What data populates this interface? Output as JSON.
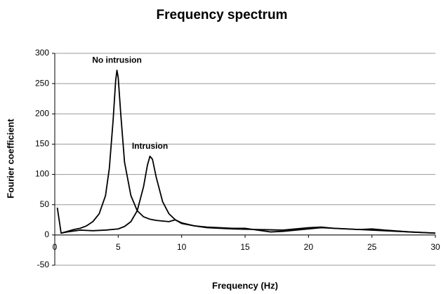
{
  "chart_data": {
    "type": "line",
    "title": "Frequency spectrum",
    "x_label": "Frequency (Hz)",
    "y_label": "Fourier coefficient",
    "xlim": [
      0,
      30
    ],
    "xticks": [
      0,
      5,
      10,
      15,
      20,
      25,
      30
    ],
    "ylim": [
      -50,
      300
    ],
    "yticks": [
      -50,
      0,
      50,
      100,
      150,
      200,
      250,
      300
    ],
    "grid": true,
    "series": [
      {
        "name": "No intrusion",
        "color": "#000000",
        "x": [
          0.2,
          0.5,
          1,
          1.5,
          2,
          2.5,
          3,
          3.5,
          4,
          4.3,
          4.6,
          4.8,
          4.9,
          5.0,
          5.2,
          5.5,
          6,
          6.5,
          7,
          7.5,
          8,
          9,
          9.5,
          10,
          11,
          12,
          14,
          16,
          18,
          20,
          21,
          22,
          24,
          26,
          28,
          30
        ],
        "values": [
          45,
          3,
          6,
          9,
          11,
          15,
          22,
          35,
          65,
          110,
          190,
          255,
          272,
          260,
          200,
          120,
          65,
          40,
          30,
          26,
          24,
          22,
          25,
          20,
          15,
          12,
          10,
          9,
          8,
          12,
          13,
          11,
          9,
          7,
          5,
          3
        ]
      },
      {
        "name": "Intrusion",
        "color": "#000000",
        "x": [
          0.5,
          1,
          2,
          3,
          4,
          5,
          5.5,
          6,
          6.5,
          7,
          7.3,
          7.5,
          7.7,
          8,
          8.5,
          9,
          9.5,
          10,
          11,
          12,
          14,
          15,
          16,
          17,
          18,
          20,
          21,
          22,
          24,
          25,
          26,
          28,
          30
        ],
        "values": [
          3,
          5,
          8,
          7,
          8,
          10,
          14,
          22,
          40,
          80,
          115,
          130,
          125,
          95,
          55,
          35,
          25,
          19,
          15,
          13,
          11,
          11,
          8,
          5,
          6,
          10,
          12,
          11,
          9,
          10,
          8,
          5,
          3
        ]
      }
    ]
  }
}
